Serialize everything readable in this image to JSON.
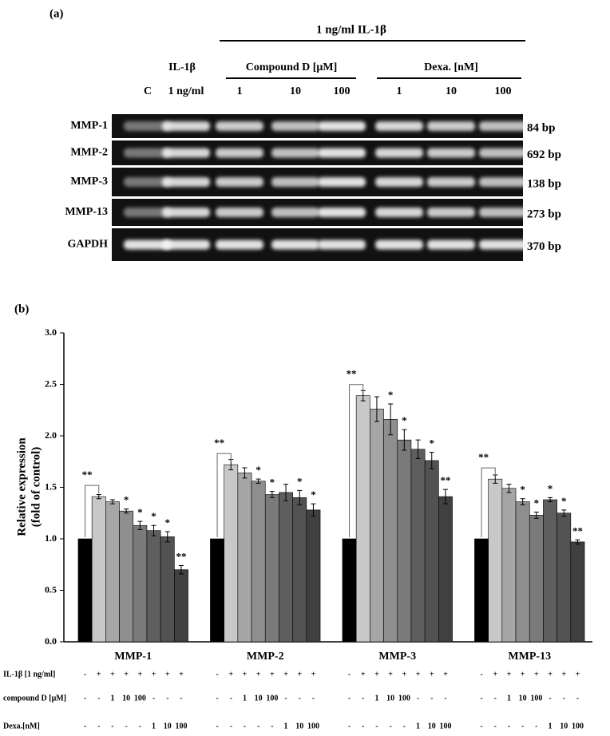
{
  "panel_a": {
    "label": "(a)",
    "treatment_header": "1 ng/ml IL-1β",
    "il_header": "IL-1β",
    "compound_header": "Compound D [μM]",
    "dexa_header": "Dexa. [nM]",
    "lanes": [
      "C",
      "1 ng/ml",
      "1",
      "10",
      "100",
      "1",
      "10",
      "100"
    ],
    "rows": [
      {
        "name": "MMP-1",
        "size": "84 bp"
      },
      {
        "name": "MMP-2",
        "size": "692 bp"
      },
      {
        "name": "MMP-3",
        "size": "138 bp"
      },
      {
        "name": "MMP-13",
        "size": "273 bp"
      },
      {
        "name": "GAPDH",
        "size": "370 bp"
      }
    ]
  },
  "chart_data": {
    "type": "bar",
    "panel_label": "(b)",
    "ylabel": [
      "Relative expression",
      "(fold of control)"
    ],
    "categories": [
      "MMP-1",
      "MMP-2",
      "MMP-3",
      "MMP-13"
    ],
    "ylim": [
      0,
      3
    ],
    "yticks": [
      {
        "value": 0,
        "label": "0.0"
      },
      0.5,
      {
        "value": 1,
        "label": "1.0"
      },
      1.5,
      {
        "value": 2,
        "label": "2.0"
      },
      2.5,
      {
        "value": 3,
        "label": "3.0"
      }
    ],
    "grid": false,
    "bracket_labels": [
      "**",
      "**",
      "**",
      "**"
    ],
    "series": [
      {
        "color": "#000000",
        "values": [
          1.0,
          1.0,
          1.0,
          1.0
        ],
        "errors": [
          0,
          0,
          0,
          0
        ],
        "significance": [
          null,
          null,
          null,
          null
        ]
      },
      {
        "color": "#c8c8c8",
        "values": [
          1.41,
          1.72,
          2.39,
          1.58
        ],
        "errors": [
          0.02,
          0.05,
          0.05,
          0.04
        ],
        "significance": [
          null,
          null,
          null,
          null
        ]
      },
      {
        "color": "#a6a6a6",
        "values": [
          1.36,
          1.64,
          2.26,
          1.49
        ],
        "errors": [
          0.02,
          0.05,
          0.12,
          0.04
        ],
        "significance": [
          null,
          null,
          null,
          null
        ]
      },
      {
        "color": "#8e8e8e",
        "values": [
          1.27,
          1.56,
          2.16,
          1.36
        ],
        "errors": [
          0.02,
          0.02,
          0.15,
          0.03
        ],
        "significance": [
          "*",
          "*",
          "*",
          "*"
        ]
      },
      {
        "color": "#7a7a7a",
        "values": [
          1.13,
          1.43,
          1.96,
          1.23
        ],
        "errors": [
          0.04,
          0.03,
          0.1,
          0.03
        ],
        "significance": [
          "*",
          "*",
          "*",
          "*"
        ]
      },
      {
        "color": "#5e5e5e",
        "values": [
          1.08,
          1.45,
          1.87,
          1.38
        ],
        "errors": [
          0.05,
          0.08,
          0.09,
          0.02
        ],
        "significance": [
          "*",
          null,
          null,
          "*"
        ]
      },
      {
        "color": "#525252",
        "values": [
          1.02,
          1.4,
          1.76,
          1.25
        ],
        "errors": [
          0.05,
          0.07,
          0.08,
          0.03
        ],
        "significance": [
          "*",
          "*",
          "*",
          "*"
        ]
      },
      {
        "color": "#404040",
        "values": [
          0.7,
          1.28,
          1.41,
          0.97
        ],
        "errors": [
          0.04,
          0.06,
          0.07,
          0.02
        ],
        "significance": [
          "**",
          "*",
          "**",
          "**"
        ]
      }
    ],
    "treatments": [
      {
        "label": "IL-1β [1 ng/ml]",
        "cells": [
          "-",
          "+",
          "+",
          "+",
          "+",
          "+",
          "+",
          "+"
        ]
      },
      {
        "label": "compound D [μM]",
        "cells": [
          "-",
          "-",
          "1",
          "10",
          "100",
          "-",
          "-",
          "-"
        ]
      },
      {
        "label": "Dexa.[nM]",
        "cells": [
          "-",
          "-",
          "-",
          "-",
          "-",
          "1",
          "10",
          "100"
        ]
      }
    ]
  }
}
